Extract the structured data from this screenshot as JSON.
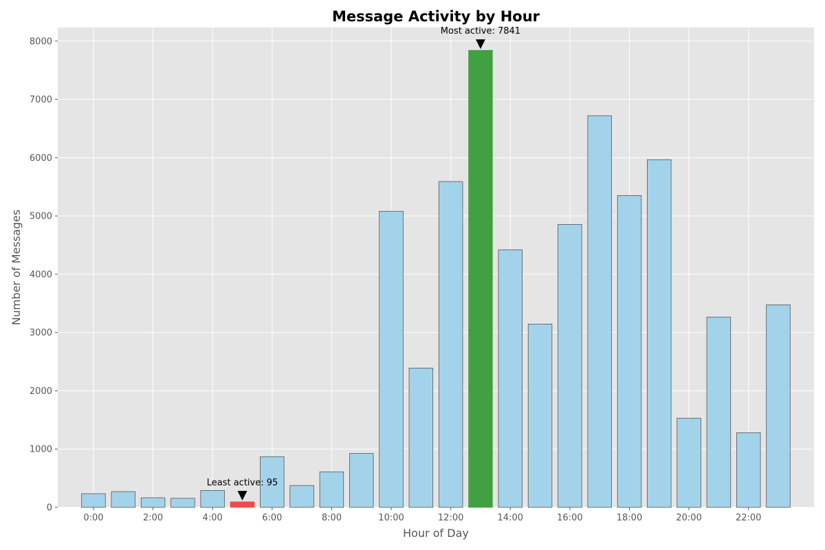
{
  "chart_data": {
    "type": "bar",
    "title": "Message Activity by Hour",
    "xlabel": "Hour of Day",
    "ylabel": "Number of Messages",
    "hours": [
      0,
      1,
      2,
      3,
      4,
      5,
      6,
      7,
      8,
      9,
      10,
      11,
      12,
      13,
      14,
      15,
      16,
      17,
      18,
      19,
      20,
      21,
      22,
      23
    ],
    "values": [
      235,
      270,
      165,
      155,
      290,
      95,
      870,
      375,
      610,
      925,
      5080,
      2390,
      5590,
      7841,
      4420,
      3145,
      4855,
      6720,
      5350,
      5965,
      1530,
      3265,
      1280,
      3475
    ],
    "x_tick_labels": [
      "0:00",
      "2:00",
      "4:00",
      "6:00",
      "8:00",
      "10:00",
      "12:00",
      "14:00",
      "16:00",
      "18:00",
      "20:00",
      "22:00"
    ],
    "x_tick_positions": [
      0,
      2,
      4,
      6,
      8,
      10,
      12,
      14,
      16,
      18,
      20,
      22
    ],
    "y_ticks": [
      0,
      1000,
      2000,
      3000,
      4000,
      5000,
      6000,
      7000,
      8000
    ],
    "ylim": [
      0,
      8233
    ],
    "xlim": [
      -1.2,
      24.2
    ],
    "grid": true,
    "highlight_max_index": 13,
    "highlight_min_index": 5,
    "annotations": {
      "max_text": "Most active: 7841",
      "min_text": "Least active: 95"
    },
    "colors": {
      "background": "#e5e5e5",
      "grid": "#ffffff",
      "bar": "#a3d3ea",
      "bar_edge": "#555555",
      "max_bar": "#41a041",
      "min_bar": "#f04a4a",
      "arrow": "#000000"
    }
  }
}
